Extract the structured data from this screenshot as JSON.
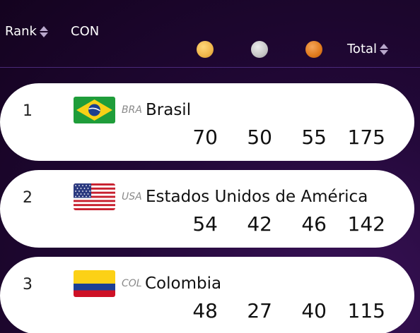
{
  "header": {
    "rank_label": "Rank",
    "con_label": "CON",
    "total_label": "Total",
    "medal_colors": {
      "gold": "#efb54a",
      "silver": "#c6c6c6",
      "bronze": "#e07a1c"
    }
  },
  "rows": [
    {
      "rank": "1",
      "code": "BRA",
      "name": "Brasil",
      "gold": "70",
      "silver": "50",
      "bronze": "55",
      "total": "175",
      "flag_icon": "brazil-flag-icon"
    },
    {
      "rank": "2",
      "code": "USA",
      "name": "Estados Unidos de América",
      "gold": "54",
      "silver": "42",
      "bronze": "46",
      "total": "142",
      "flag_icon": "usa-flag-icon"
    },
    {
      "rank": "3",
      "code": "COL",
      "name": "Colombia",
      "gold": "48",
      "silver": "27",
      "bronze": "40",
      "total": "115",
      "flag_icon": "colombia-flag-icon"
    }
  ]
}
